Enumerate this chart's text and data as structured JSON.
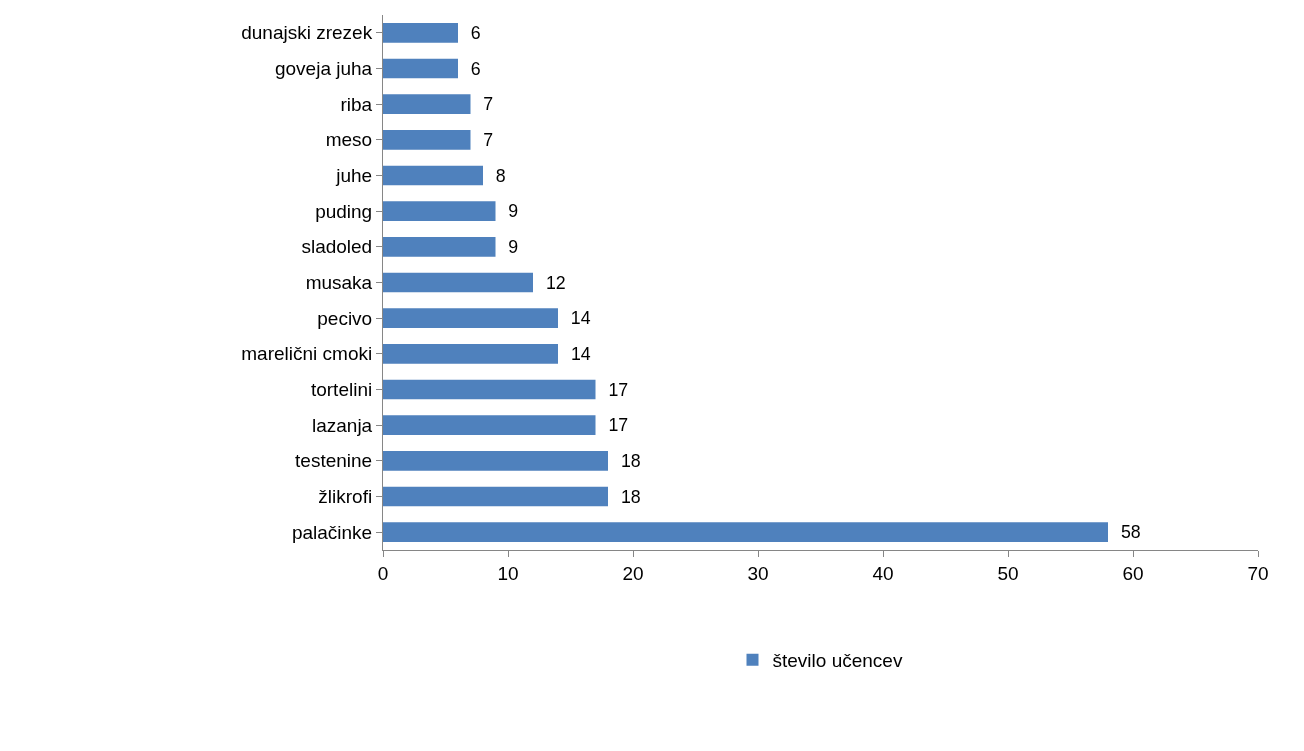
{
  "chart_data": {
    "type": "bar",
    "orientation": "horizontal",
    "categories": [
      "dunajski zrezek",
      "goveja juha",
      "riba",
      "meso",
      "juhe",
      "puding",
      "sladoled",
      "musaka",
      "pecivo",
      "marelični cmoki",
      "tortelini",
      "lazanja",
      "testenine",
      "žlikrofi",
      "palačinke"
    ],
    "series": [
      {
        "name": "število učencev",
        "color": "#4f81bd",
        "values": [
          6,
          6,
          7,
          7,
          8,
          9,
          9,
          12,
          14,
          14,
          17,
          17,
          18,
          18,
          58
        ]
      }
    ],
    "xlim": [
      0,
      70
    ],
    "xticks": [
      0,
      10,
      20,
      30,
      40,
      50,
      60,
      70
    ],
    "data_labels": true,
    "legend": "bottom"
  }
}
